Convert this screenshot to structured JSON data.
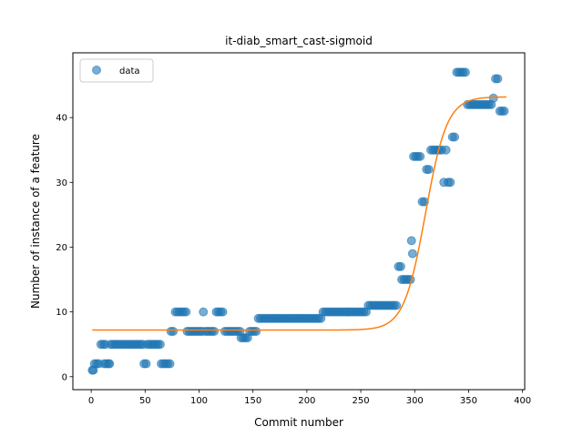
{
  "chart_data": {
    "type": "scatter",
    "title": "it-diab_smart_cast-sigmoid",
    "xlabel": "Commit number",
    "ylabel": "Number of instance of a feature",
    "xlim": [
      -17,
      402
    ],
    "ylim": [
      -2,
      50
    ],
    "xticks": [
      0,
      50,
      100,
      150,
      200,
      250,
      300,
      350,
      400
    ],
    "yticks": [
      0,
      10,
      20,
      30,
      40
    ],
    "grid": false,
    "legend": {
      "placement": "top-left",
      "entries": [
        "data"
      ]
    },
    "colors": {
      "data": "#1f77b4",
      "fit": "#ff7f0e"
    },
    "series": [
      {
        "name": "data",
        "kind": "scatter",
        "points": [
          [
            1,
            1
          ],
          [
            2,
            1
          ],
          [
            3,
            2
          ],
          [
            5,
            2
          ],
          [
            7,
            2
          ],
          [
            9,
            5
          ],
          [
            11,
            5
          ],
          [
            12,
            2
          ],
          [
            13,
            5
          ],
          [
            14,
            2
          ],
          [
            16,
            2
          ],
          [
            17,
            2
          ],
          [
            18,
            5
          ],
          [
            20,
            5
          ],
          [
            22,
            5
          ],
          [
            24,
            5
          ],
          [
            26,
            5
          ],
          [
            28,
            5
          ],
          [
            30,
            5
          ],
          [
            32,
            5
          ],
          [
            34,
            5
          ],
          [
            36,
            5
          ],
          [
            38,
            5
          ],
          [
            40,
            5
          ],
          [
            42,
            5
          ],
          [
            44,
            5
          ],
          [
            46,
            5
          ],
          [
            48,
            5
          ],
          [
            49,
            2
          ],
          [
            51,
            2
          ],
          [
            52,
            5
          ],
          [
            54,
            5
          ],
          [
            56,
            5
          ],
          [
            58,
            5
          ],
          [
            60,
            5
          ],
          [
            62,
            5
          ],
          [
            64,
            5
          ],
          [
            65,
            2
          ],
          [
            67,
            2
          ],
          [
            69,
            2
          ],
          [
            71,
            2
          ],
          [
            73,
            2
          ],
          [
            74,
            7
          ],
          [
            76,
            7
          ],
          [
            78,
            10
          ],
          [
            80,
            10
          ],
          [
            82,
            10
          ],
          [
            84,
            10
          ],
          [
            86,
            10
          ],
          [
            88,
            10
          ],
          [
            89,
            7
          ],
          [
            91,
            7
          ],
          [
            93,
            7
          ],
          [
            95,
            7
          ],
          [
            97,
            7
          ],
          [
            99,
            7
          ],
          [
            101,
            7
          ],
          [
            103,
            7
          ],
          [
            104,
            10
          ],
          [
            106,
            7
          ],
          [
            108,
            7
          ],
          [
            110,
            7
          ],
          [
            112,
            7
          ],
          [
            114,
            7
          ],
          [
            116,
            10
          ],
          [
            118,
            10
          ],
          [
            120,
            10
          ],
          [
            122,
            10
          ],
          [
            124,
            7
          ],
          [
            126,
            7
          ],
          [
            128,
            7
          ],
          [
            130,
            7
          ],
          [
            132,
            7
          ],
          [
            134,
            7
          ],
          [
            136,
            7
          ],
          [
            138,
            7
          ],
          [
            139,
            6
          ],
          [
            141,
            6
          ],
          [
            143,
            6
          ],
          [
            145,
            6
          ],
          [
            147,
            7
          ],
          [
            149,
            7
          ],
          [
            151,
            7
          ],
          [
            153,
            7
          ],
          [
            155,
            9
          ],
          [
            157,
            9
          ],
          [
            159,
            9
          ],
          [
            161,
            9
          ],
          [
            163,
            9
          ],
          [
            165,
            9
          ],
          [
            167,
            9
          ],
          [
            169,
            9
          ],
          [
            171,
            9
          ],
          [
            173,
            9
          ],
          [
            175,
            9
          ],
          [
            177,
            9
          ],
          [
            179,
            9
          ],
          [
            181,
            9
          ],
          [
            183,
            9
          ],
          [
            185,
            9
          ],
          [
            187,
            9
          ],
          [
            189,
            9
          ],
          [
            191,
            9
          ],
          [
            193,
            9
          ],
          [
            195,
            9
          ],
          [
            197,
            9
          ],
          [
            199,
            9
          ],
          [
            201,
            9
          ],
          [
            203,
            9
          ],
          [
            205,
            9
          ],
          [
            207,
            9
          ],
          [
            209,
            9
          ],
          [
            211,
            9
          ],
          [
            213,
            9
          ],
          [
            215,
            10
          ],
          [
            217,
            10
          ],
          [
            219,
            10
          ],
          [
            221,
            10
          ],
          [
            223,
            10
          ],
          [
            225,
            10
          ],
          [
            227,
            10
          ],
          [
            229,
            10
          ],
          [
            231,
            10
          ],
          [
            233,
            10
          ],
          [
            235,
            10
          ],
          [
            237,
            10
          ],
          [
            239,
            10
          ],
          [
            241,
            10
          ],
          [
            243,
            10
          ],
          [
            245,
            10
          ],
          [
            247,
            10
          ],
          [
            249,
            10
          ],
          [
            251,
            10
          ],
          [
            253,
            10
          ],
          [
            255,
            10
          ],
          [
            257,
            11
          ],
          [
            259,
            11
          ],
          [
            261,
            11
          ],
          [
            263,
            11
          ],
          [
            265,
            11
          ],
          [
            267,
            11
          ],
          [
            269,
            11
          ],
          [
            271,
            11
          ],
          [
            273,
            11
          ],
          [
            275,
            11
          ],
          [
            277,
            11
          ],
          [
            279,
            11
          ],
          [
            281,
            11
          ],
          [
            283,
            11
          ],
          [
            285,
            17
          ],
          [
            287,
            17
          ],
          [
            288,
            15
          ],
          [
            290,
            15
          ],
          [
            292,
            15
          ],
          [
            294,
            15
          ],
          [
            296,
            15
          ],
          [
            297,
            21
          ],
          [
            298,
            19
          ],
          [
            299,
            34
          ],
          [
            301,
            34
          ],
          [
            303,
            34
          ],
          [
            305,
            34
          ],
          [
            307,
            27
          ],
          [
            309,
            27
          ],
          [
            311,
            32
          ],
          [
            313,
            32
          ],
          [
            315,
            35
          ],
          [
            317,
            35
          ],
          [
            319,
            35
          ],
          [
            321,
            35
          ],
          [
            323,
            35
          ],
          [
            325,
            35
          ],
          [
            327,
            30
          ],
          [
            329,
            35
          ],
          [
            331,
            30
          ],
          [
            333,
            30
          ],
          [
            335,
            37
          ],
          [
            337,
            37
          ],
          [
            339,
            47
          ],
          [
            341,
            47
          ],
          [
            343,
            47
          ],
          [
            345,
            47
          ],
          [
            347,
            47
          ],
          [
            349,
            42
          ],
          [
            351,
            42
          ],
          [
            353,
            42
          ],
          [
            355,
            42
          ],
          [
            357,
            42
          ],
          [
            359,
            42
          ],
          [
            361,
            42
          ],
          [
            363,
            42
          ],
          [
            365,
            42
          ],
          [
            367,
            42
          ],
          [
            369,
            42
          ],
          [
            371,
            42
          ],
          [
            373,
            43
          ],
          [
            375,
            46
          ],
          [
            377,
            46
          ],
          [
            379,
            41
          ],
          [
            381,
            41
          ],
          [
            383,
            41
          ]
        ]
      },
      {
        "name": "",
        "kind": "sigmoid-fit",
        "params": {
          "L": 36.0,
          "k": 0.1,
          "x0": 310,
          "b": 7.2
        },
        "x_range": [
          1,
          385
        ]
      }
    ]
  }
}
